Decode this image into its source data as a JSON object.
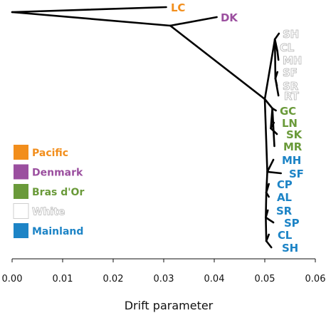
{
  "chart_data": {
    "type": "tree",
    "xlabel": "Drift parameter",
    "xlim": [
      0,
      0.06
    ],
    "x_ticks": [
      "0.00",
      "0.01",
      "0.02",
      "0.03",
      "0.04",
      "0.05",
      "0.06"
    ],
    "legend": {
      "placement": "left-middle",
      "entries": [
        {
          "name": "Pacific",
          "color": "#f28e1c"
        },
        {
          "name": "Denmark",
          "color": "#9b4f9f"
        },
        {
          "name": "Bras d'Or",
          "color": "#6a9a3a"
        },
        {
          "name": "White",
          "color": "#dcdcdc"
        },
        {
          "name": "Mainland",
          "color": "#1d84c6"
        }
      ]
    },
    "tips": [
      {
        "label": "LC",
        "group": "Pacific",
        "drift": 0.0305
      },
      {
        "label": "DK",
        "group": "Denmark",
        "drift": 0.0405
      },
      {
        "label": "SH",
        "group": "White",
        "drift": 0.0528
      },
      {
        "label": "CL",
        "group": "White",
        "drift": 0.0523
      },
      {
        "label": "MH",
        "group": "White",
        "drift": 0.0527
      },
      {
        "label": "SF",
        "group": "White",
        "drift": 0.0525
      },
      {
        "label": "SR",
        "group": "White",
        "drift": 0.0524
      },
      {
        "label": "RT",
        "group": "White",
        "drift": 0.0527
      },
      {
        "label": "GC",
        "group": "Bras d'Or",
        "drift": 0.0522
      },
      {
        "label": "LN",
        "group": "Bras d'Or",
        "drift": 0.0518
      },
      {
        "label": "SK",
        "group": "Bras d'Or",
        "drift": 0.0524
      },
      {
        "label": "MR",
        "group": "Bras d'Or",
        "drift": 0.0519
      },
      {
        "label": "MH",
        "group": "Mainland",
        "drift": 0.0517
      },
      {
        "label": "SF",
        "group": "Mainland",
        "drift": 0.0532
      },
      {
        "label": "CP",
        "group": "Mainland",
        "drift": 0.0508
      },
      {
        "label": "AL",
        "group": "Mainland",
        "drift": 0.0508
      },
      {
        "label": "SR",
        "group": "Mainland",
        "drift": 0.0506
      },
      {
        "label": "SP",
        "group": "Mainland",
        "drift": 0.0517
      },
      {
        "label": "CL",
        "group": "Mainland",
        "drift": 0.0508
      },
      {
        "label": "SH",
        "group": "Mainland",
        "drift": 0.0513
      }
    ],
    "internal_nodes": [
      {
        "id": "root",
        "drift": 0.0
      },
      {
        "id": "n1",
        "drift": 0.0313
      },
      {
        "id": "n2",
        "drift": 0.05
      },
      {
        "id": "w",
        "drift": 0.052
      },
      {
        "id": "w1",
        "drift": 0.0525
      },
      {
        "id": "w2",
        "drift": 0.0521
      },
      {
        "id": "b",
        "drift": 0.0515
      },
      {
        "id": "b1",
        "drift": 0.0512
      },
      {
        "id": "m",
        "drift": 0.0505
      },
      {
        "id": "m1",
        "drift": 0.0503
      },
      {
        "id": "m2",
        "drift": 0.0502
      },
      {
        "id": "m3",
        "drift": 0.0503
      }
    ],
    "edges": [
      [
        "root",
        "LC"
      ],
      [
        "root",
        "n1"
      ],
      [
        "n1",
        "DK"
      ],
      [
        "n1",
        "n2"
      ],
      [
        "n2",
        "w"
      ],
      [
        "n2",
        "b"
      ],
      [
        "n2",
        "m"
      ],
      [
        "w",
        "SH"
      ],
      [
        "w",
        "w1"
      ],
      [
        "w",
        "w2"
      ],
      [
        "w1",
        "CL"
      ],
      [
        "w1",
        "MH"
      ],
      [
        "w2",
        "SF"
      ],
      [
        "w2",
        "SR"
      ],
      [
        "w2",
        "RT"
      ],
      [
        "b",
        "GC"
      ],
      [
        "b",
        "b1"
      ],
      [
        "b",
        "MR"
      ],
      [
        "b1",
        "LN"
      ],
      [
        "b1",
        "SK"
      ],
      [
        "m",
        "MH"
      ],
      [
        "m",
        "SF"
      ],
      [
        "m",
        "m1"
      ],
      [
        "m1",
        "CP"
      ],
      [
        "m1",
        "AL"
      ],
      [
        "m1",
        "m2"
      ],
      [
        "m2",
        "SR"
      ],
      [
        "m2",
        "SP"
      ],
      [
        "m2",
        "m3"
      ],
      [
        "m3",
        "CL"
      ],
      [
        "m3",
        "SH"
      ]
    ]
  }
}
